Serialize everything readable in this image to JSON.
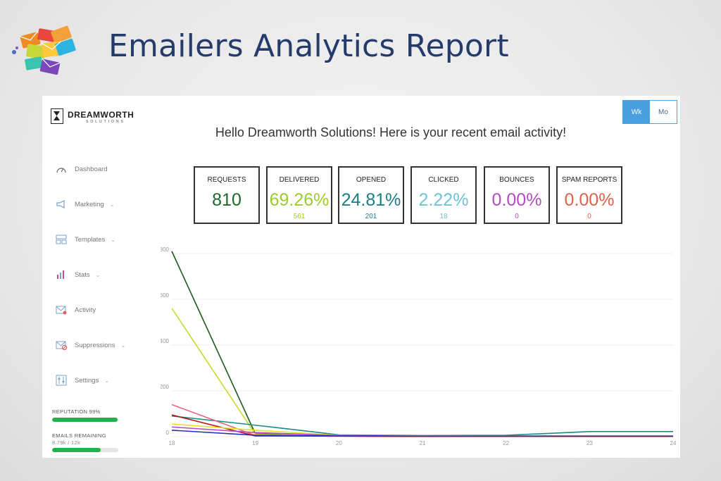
{
  "slide": {
    "title": "Emailers Analytics Report",
    "logo_icon": "envelopes-cluster-icon"
  },
  "app": {
    "brand": {
      "name": "DREAMWORTH",
      "sub": "SOLUTIONS"
    },
    "greeting": "Hello Dreamworth Solutions! Here is your recent email activity!",
    "period_toggle": [
      {
        "label": "Wk",
        "active": true
      },
      {
        "label": "Mo",
        "active": false
      }
    ],
    "sidebar": {
      "items": [
        {
          "label": "Dashboard",
          "icon": "gauge-icon",
          "has_chevron": false
        },
        {
          "label": "Marketing",
          "icon": "megaphone-icon",
          "has_chevron": true
        },
        {
          "label": "Templates",
          "icon": "templates-icon",
          "has_chevron": true
        },
        {
          "label": "Stats",
          "icon": "bar-chart-icon",
          "has_chevron": true
        },
        {
          "label": "Activity",
          "icon": "activity-envelope-icon",
          "has_chevron": false
        },
        {
          "label": "Suppressions",
          "icon": "suppression-envelope-icon",
          "has_chevron": true
        },
        {
          "label": "Settings",
          "icon": "settings-sliders-icon",
          "has_chevron": true
        }
      ],
      "reputation": {
        "label": "REPUTATION 99%",
        "fraction": 0.99
      },
      "emails_remaining": {
        "label": "EMAILS REMAINING",
        "value": "8.79k / 12k",
        "fraction": 0.73
      }
    },
    "stats": [
      {
        "label": "REQUESTS",
        "value": "810",
        "count": "",
        "color": "#1a6b2a"
      },
      {
        "label": "DELIVERED",
        "value": "69.26%",
        "count": "561",
        "color": "#9ccc2c"
      },
      {
        "label": "OPENED",
        "value": "24.81%",
        "count": "201",
        "color": "#1a7f86"
      },
      {
        "label": "CLICKED",
        "value": "2.22%",
        "count": "18",
        "color": "#6ec3d4"
      },
      {
        "label": "BOUNCES",
        "value": "0.00%",
        "count": "0",
        "color": "#b44bc4"
      },
      {
        "label": "SPAM REPORTS",
        "value": "0.00%",
        "count": "0",
        "color": "#e0604e"
      }
    ]
  },
  "chart_data": {
    "type": "line",
    "x": [
      "18",
      "19",
      "20",
      "21",
      "22",
      "23",
      "24"
    ],
    "ylim": [
      0,
      800
    ],
    "yticks": [
      0,
      200,
      400,
      600,
      800
    ],
    "grid": "horizontal",
    "series": [
      {
        "color": "#1a5a1a",
        "values": [
          810,
          12,
          5,
          3,
          3,
          3,
          3
        ]
      },
      {
        "color": "#c8d82c",
        "values": [
          561,
          10,
          4,
          2,
          2,
          2,
          2
        ]
      },
      {
        "color": "#1a8c8c",
        "values": [
          90,
          50,
          8,
          5,
          6,
          22,
          22
        ]
      },
      {
        "color": "#e8607a",
        "values": [
          140,
          5,
          2,
          1,
          1,
          1,
          1
        ]
      },
      {
        "color": "#b01818",
        "values": [
          95,
          3,
          2,
          1,
          1,
          1,
          1
        ]
      },
      {
        "color": "#e8e020",
        "values": [
          55,
          28,
          6,
          3,
          3,
          3,
          3
        ]
      },
      {
        "color": "#b44bc4",
        "values": [
          42,
          18,
          5,
          2,
          2,
          2,
          2
        ]
      },
      {
        "color": "#2c2cc8",
        "values": [
          28,
          6,
          3,
          2,
          2,
          2,
          2
        ]
      }
    ]
  }
}
